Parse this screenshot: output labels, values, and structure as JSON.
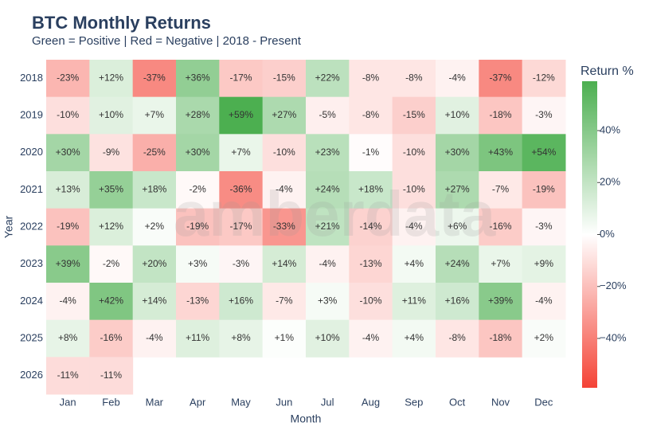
{
  "chart_data": {
    "type": "heatmap",
    "title": "BTC Monthly Returns",
    "subtitle": "Green = Positive | Red = Negative | 2018 - Present",
    "x_label": "Month",
    "y_label": "Year",
    "colorbar_title": "Return %",
    "watermark": "amberdata",
    "categories": [
      "Jan",
      "Feb",
      "Mar",
      "Apr",
      "May",
      "Jun",
      "Jul",
      "Aug",
      "Sep",
      "Oct",
      "Nov",
      "Dec"
    ],
    "rows": [
      "2018",
      "2019",
      "2020",
      "2021",
      "2022",
      "2023",
      "2024",
      "2025",
      "2026"
    ],
    "values": [
      [
        -23,
        12,
        -37,
        36,
        -17,
        -15,
        22,
        -8,
        -8,
        -4,
        -37,
        -12
      ],
      [
        -10,
        10,
        7,
        28,
        59,
        27,
        -5,
        -8,
        -15,
        10,
        -18,
        -3
      ],
      [
        30,
        -9,
        -25,
        30,
        7,
        -10,
        23,
        -1,
        -10,
        30,
        43,
        54
      ],
      [
        13,
        35,
        18,
        -2,
        -36,
        -4,
        24,
        18,
        -10,
        27,
        -7,
        -19
      ],
      [
        -19,
        12,
        2,
        -19,
        -17,
        -33,
        21,
        -14,
        -4,
        6,
        -16,
        -3
      ],
      [
        39,
        -2,
        20,
        3,
        -3,
        14,
        -4,
        -13,
        4,
        24,
        7,
        9
      ],
      [
        -4,
        42,
        14,
        -13,
        16,
        -7,
        3,
        -10,
        11,
        16,
        39,
        -4
      ],
      [
        8,
        -16,
        -4,
        11,
        8,
        1,
        10,
        -4,
        4,
        -8,
        -18,
        2
      ],
      [
        -11,
        -11,
        null,
        null,
        null,
        null,
        null,
        null,
        null,
        null,
        null,
        null
      ]
    ],
    "value_labels": [
      [
        "-23%",
        "+12%",
        "-37%",
        "+36%",
        "-17%",
        "-15%",
        "+22%",
        "-8%",
        "-8%",
        "-4%",
        "-37%",
        "-12%"
      ],
      [
        "-10%",
        "+10%",
        "+7%",
        "+28%",
        "+59%",
        "+27%",
        "-5%",
        "-8%",
        "-15%",
        "+10%",
        "-18%",
        "-3%"
      ],
      [
        "+30%",
        "-9%",
        "-25%",
        "+30%",
        "+7%",
        "-10%",
        "+23%",
        "-1%",
        "-10%",
        "+30%",
        "+43%",
        "+54%"
      ],
      [
        "+13%",
        "+35%",
        "+18%",
        "-2%",
        "-36%",
        "-4%",
        "+24%",
        "+18%",
        "-10%",
        "+27%",
        "-7%",
        "-19%"
      ],
      [
        "-19%",
        "+12%",
        "+2%",
        "-19%",
        "-17%",
        "-33%",
        "+21%",
        "-14%",
        "-4%",
        "+6%",
        "-16%",
        "-3%"
      ],
      [
        "+39%",
        "-2%",
        "+20%",
        "+3%",
        "-3%",
        "+14%",
        "-4%",
        "-13%",
        "+4%",
        "+24%",
        "+7%",
        "+9%"
      ],
      [
        "-4%",
        "+42%",
        "+14%",
        "-13%",
        "+16%",
        "-7%",
        "+3%",
        "-10%",
        "+11%",
        "+16%",
        "+39%",
        "-4%"
      ],
      [
        "+8%",
        "-16%",
        "-4%",
        "+11%",
        "+8%",
        "+1%",
        "+10%",
        "-4%",
        "+4%",
        "-8%",
        "-18%",
        "+2%"
      ],
      [
        "-11%",
        "-11%",
        null,
        null,
        null,
        null,
        null,
        null,
        null,
        null,
        null,
        null
      ]
    ],
    "colorscale": [
      "#f44336",
      "#ffffff",
      "#4caf50"
    ],
    "zlim": [
      -59,
      59
    ],
    "zticks": [
      {
        "value": 40,
        "label": "40%"
      },
      {
        "value": 20,
        "label": "20%"
      },
      {
        "value": 0,
        "label": "0%"
      },
      {
        "value": -20,
        "label": "−20%"
      },
      {
        "value": -40,
        "label": "−40%"
      }
    ]
  }
}
